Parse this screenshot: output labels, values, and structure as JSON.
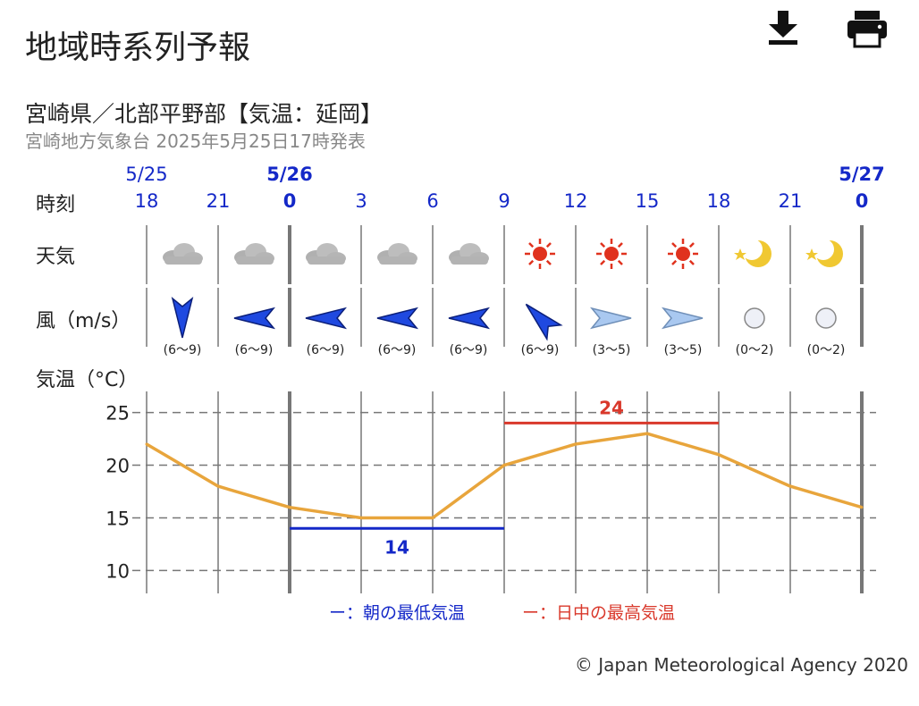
{
  "page": {
    "title": "地域時系列予報",
    "subtitle": "宮崎県／北部平野部【気温：延岡】",
    "issued": "宮崎地方気象台 2025年5月25日17時発表",
    "copyright": "© Japan Meteorological Agency 2020"
  },
  "toolbar": {
    "download_icon": "download-icon",
    "print_icon": "print-icon"
  },
  "rows": {
    "time_label": "時刻",
    "weather_label": "天気",
    "wind_label": "風（m/s）",
    "temp_label": "気温（°C）"
  },
  "legend": {
    "min_label": "ー：朝の最低気温",
    "max_label": "ー：日中の最高気温"
  },
  "colors": {
    "accent_blue": "#1428c8",
    "max_red": "#d9382b",
    "temp_line": "#e8a53c",
    "grid": "#777777",
    "sun": "#e0321e",
    "moon": "#f0c832"
  },
  "chart_data": {
    "type": "line",
    "dates": [
      {
        "label": "5/25",
        "at_index": 0,
        "bold": false
      },
      {
        "label": "5/26",
        "at_index": 2,
        "bold": true
      },
      {
        "label": "5/27",
        "at_index": 10,
        "bold": true
      }
    ],
    "x": [
      "18",
      "21",
      "0",
      "3",
      "6",
      "9",
      "12",
      "15",
      "18",
      "21",
      "0"
    ],
    "ticks_bold": [
      false,
      false,
      true,
      false,
      false,
      false,
      false,
      false,
      false,
      false,
      true
    ],
    "temperature": [
      22,
      18,
      16,
      15,
      15,
      20,
      22,
      23,
      21,
      18,
      16
    ],
    "ylim": [
      8,
      27
    ],
    "yticks": [
      10,
      15,
      20,
      25
    ],
    "min_temp": {
      "value": 14,
      "label": "14",
      "from_index": 2,
      "to_index": 5
    },
    "max_temp": {
      "value": 24,
      "label": "24",
      "from_index": 5,
      "to_index": 8
    },
    "weather": [
      "cloudy-icon",
      "cloudy-icon",
      "cloudy-icon",
      "cloudy-icon",
      "cloudy-icon",
      "sunny-icon",
      "sunny-icon",
      "sunny-icon",
      "moon-clear-icon",
      "moon-clear-icon"
    ],
    "wind": [
      {
        "dir": "N",
        "range": "(6〜9)",
        "strength": "strong"
      },
      {
        "dir": "W",
        "range": "(6〜9)",
        "strength": "strong"
      },
      {
        "dir": "W",
        "range": "(6〜9)",
        "strength": "strong"
      },
      {
        "dir": "W",
        "range": "(6〜9)",
        "strength": "strong"
      },
      {
        "dir": "W",
        "range": "(6〜9)",
        "strength": "strong"
      },
      {
        "dir": "SW",
        "range": "(6〜9)",
        "strength": "strong"
      },
      {
        "dir": "E",
        "range": "(3〜5)",
        "strength": "moderate"
      },
      {
        "dir": "E",
        "range": "(3〜5)",
        "strength": "moderate"
      },
      {
        "dir": "calm",
        "range": "(0〜2)",
        "strength": "calm"
      },
      {
        "dir": "calm",
        "range": "(0〜2)",
        "strength": "calm"
      }
    ]
  }
}
